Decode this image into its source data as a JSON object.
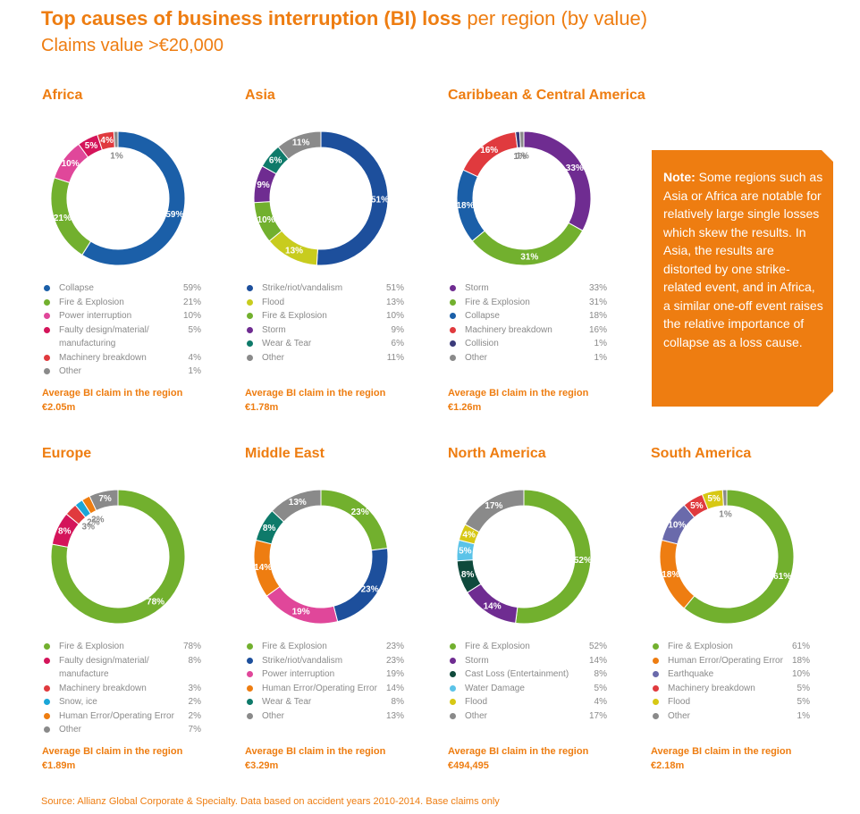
{
  "title_bold": "Top causes of business interruption (BI) loss",
  "title_rest": "per region (by value)",
  "subtitle": "Claims value >€20,000",
  "note": {
    "label": "Note:",
    "text": "Some regions such as Asia or Africa are notable for relatively large single losses which skew the results. In Asia, the results are distorted by one strike-related event, and in Africa, a similar one-off event raises the relative importance of collapse as a loss cause."
  },
  "source": "Source: Allianz Global Corporate & Specialty. Data based on accident years 2010-2014. Base claims only",
  "chart_data": [
    {
      "type": "donut",
      "title": "Africa",
      "categories": [
        "Collapse",
        "Fire & Explosion",
        "Power interruption",
        "Faulty design/material/ manufacturing",
        "Machinery breakdown",
        "Other"
      ],
      "values": [
        59,
        21,
        10,
        5,
        4,
        1
      ],
      "value_labels": [
        "59%",
        "21%",
        "10%",
        "5%",
        "4%",
        "1%"
      ],
      "colors": [
        "#1b5fa8",
        "#72b02e",
        "#e0479a",
        "#d4145a",
        "#e03a3e",
        "#8a8a8a"
      ],
      "avg_label": "Average BI claim in the region",
      "avg_value": "€2.05m"
    },
    {
      "type": "donut",
      "title": "Asia",
      "categories": [
        "Strike/riot/vandalism",
        "Flood",
        "Fire & Explosion",
        "Storm",
        "Wear & Tear",
        "Other"
      ],
      "values": [
        51,
        13,
        10,
        9,
        6,
        11
      ],
      "value_labels": [
        "51%",
        "13%",
        "10%",
        "9%",
        "6%",
        "11%"
      ],
      "colors": [
        "#1d4f9c",
        "#c8cc1e",
        "#72b02e",
        "#6f2c91",
        "#0e7a6a",
        "#8a8a8a"
      ],
      "avg_label": "Average BI claim in the region",
      "avg_value": "€1.78m"
    },
    {
      "type": "donut",
      "title": "Caribbean & Central America",
      "categories": [
        "Storm",
        "Fire & Explosion",
        "Collapse",
        "Machinery breakdown",
        "Collision",
        "Other"
      ],
      "values": [
        33,
        31,
        18,
        16,
        1,
        1
      ],
      "value_labels": [
        "33%",
        "31%",
        "18%",
        "16%",
        "1%",
        "1%"
      ],
      "colors": [
        "#6f2c91",
        "#72b02e",
        "#1b5fa8",
        "#e03a3e",
        "#3b3b7a",
        "#8a8a8a"
      ],
      "avg_label": "Average BI claim in the region",
      "avg_value": "€1.26m"
    },
    {
      "type": "donut",
      "title": "Europe",
      "categories": [
        "Fire & Explosion",
        "Faulty design/material/ manufacture",
        "Machinery breakdown",
        "Snow, ice",
        "Human Error/Operating Error",
        "Other"
      ],
      "values": [
        78,
        8,
        3,
        2,
        2,
        7
      ],
      "value_labels": [
        "78%",
        "8%",
        "3%",
        "2%",
        "2%",
        "7%"
      ],
      "colors": [
        "#72b02e",
        "#d4145a",
        "#e03a3e",
        "#1aa6d8",
        "#ee7d11",
        "#8a8a8a"
      ],
      "avg_label": "Average BI claim in the region",
      "avg_value": "€1.89m"
    },
    {
      "type": "donut",
      "title": "Middle East",
      "categories": [
        "Fire & Explosion",
        "Strike/riot/vandalism",
        "Power interruption",
        "Human Error/Operating Error",
        "Wear & Tear",
        "Other"
      ],
      "values": [
        23,
        23,
        19,
        14,
        8,
        13
      ],
      "value_labels": [
        "23%",
        "23%",
        "19%",
        "14%",
        "8%",
        "13%"
      ],
      "colors": [
        "#72b02e",
        "#1d4f9c",
        "#e0479a",
        "#ee7d11",
        "#0e7a6a",
        "#8a8a8a"
      ],
      "avg_label": "Average BI claim in the region",
      "avg_value": "€3.29m"
    },
    {
      "type": "donut",
      "title": "North America",
      "categories": [
        "Fire & Explosion",
        "Storm",
        "Cast Loss (Entertainment)",
        "Water Damage",
        "Flood",
        "Other"
      ],
      "values": [
        52,
        14,
        8,
        5,
        4,
        17
      ],
      "value_labels": [
        "52%",
        "14%",
        "8%",
        "5%",
        "4%",
        "17%"
      ],
      "colors": [
        "#72b02e",
        "#6f2c91",
        "#0f4a3c",
        "#5bc3e8",
        "#d7c814",
        "#8a8a8a"
      ],
      "avg_label": "Average BI claim in the region",
      "avg_value": "€494,495"
    },
    {
      "type": "donut",
      "title": "South America",
      "categories": [
        "Fire & Explosion",
        "Human Error/Operating Error",
        "Earthquake",
        "Machinery breakdown",
        "Flood",
        "Other"
      ],
      "values": [
        61,
        18,
        10,
        5,
        5,
        1
      ],
      "value_labels": [
        "61%",
        "18%",
        "10%",
        "5%",
        "5%",
        "1%"
      ],
      "colors": [
        "#72b02e",
        "#ee7d11",
        "#6a6aab",
        "#e03a3e",
        "#d7c814",
        "#8a8a8a"
      ],
      "avg_label": "Average BI claim in the region",
      "avg_value": "€2.18m"
    }
  ]
}
